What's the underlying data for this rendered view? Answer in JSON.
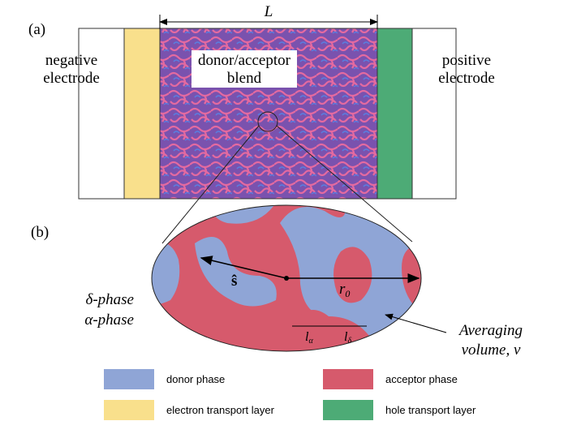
{
  "panel_a": {
    "label": "(a)",
    "length_label": "L",
    "negative_electrode": [
      "negative",
      "electrode"
    ],
    "blend": [
      "donor/acceptor",
      "blend"
    ],
    "positive_electrode": [
      "positive",
      "electrode"
    ]
  },
  "panel_b": {
    "label": "(b)",
    "direction": "ŝ",
    "radius": {
      "symbol": "r",
      "subscript": "0"
    },
    "delta_phase": "δ-phase",
    "alpha_phase": "α-phase",
    "l_alpha": {
      "symbol": "l",
      "subscript": "α"
    },
    "l_delta": {
      "symbol": "l",
      "subscript": "δ"
    },
    "averaging_volume": [
      "Averaging",
      "volume, ν"
    ]
  },
  "legend": [
    {
      "label": "donor phase",
      "color": "#8fa5d6"
    },
    {
      "label": "acceptor phase",
      "color": "#d65a6c"
    },
    {
      "label": "electron transport layer",
      "color": "#f9e08c"
    },
    {
      "label": "hole transport layer",
      "color": "#4dab76"
    }
  ]
}
